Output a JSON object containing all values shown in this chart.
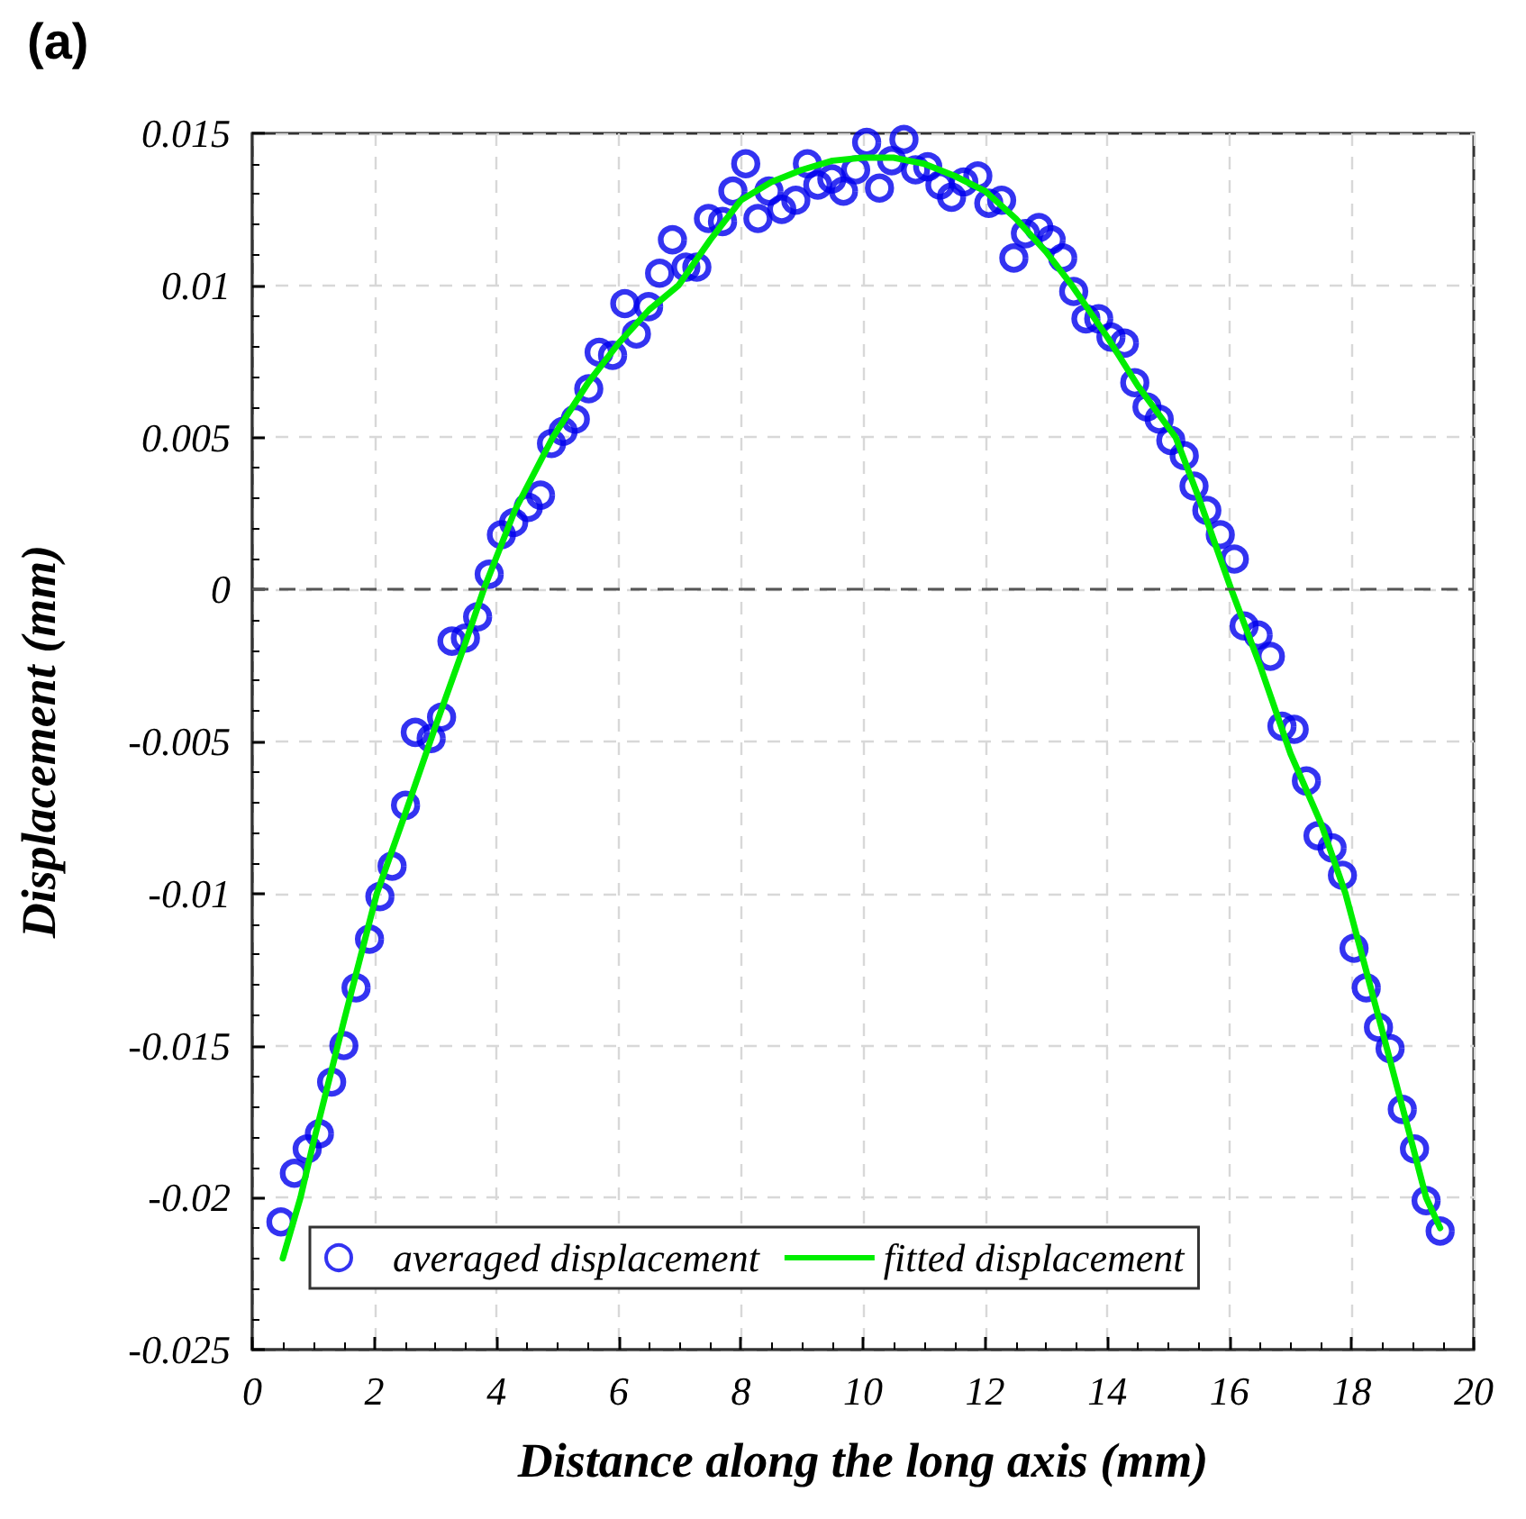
{
  "chart_data": {
    "type": "scatter",
    "title": "(a)",
    "xlabel": "Distance along the long axis (mm)",
    "ylabel": "Displacement (mm)",
    "xlim": [
      0,
      20
    ],
    "xticks": [
      0,
      2,
      4,
      6,
      8,
      10,
      12,
      14,
      16,
      18,
      20
    ],
    "ylim": [
      -0.025,
      0.015
    ],
    "yticks": [
      -0.025,
      -0.02,
      -0.015,
      -0.01,
      -0.005,
      0,
      0.005,
      0.01,
      0.015
    ],
    "grid": true,
    "legend": "bottom",
    "marker": "circle",
    "ref_lines": [
      {
        "axis": "y",
        "value": 0,
        "color": "#555555",
        "line_style": "dashed"
      }
    ],
    "series": [
      {
        "name": "averaged displacement",
        "color": "#0000ee",
        "x": [
          0.47,
          0.69,
          0.9,
          1.1,
          1.3,
          1.5,
          1.7,
          1.92,
          2.09,
          2.29,
          2.51,
          2.67,
          2.93,
          3.1,
          3.27,
          3.49,
          3.69,
          3.88,
          4.08,
          4.28,
          4.52,
          4.72,
          4.9,
          5.09,
          5.29,
          5.51,
          5.68,
          5.9,
          6.1,
          6.29,
          6.49,
          6.67,
          6.88,
          7.1,
          7.28,
          7.47,
          7.7,
          7.87,
          8.08,
          8.28,
          8.46,
          8.67,
          8.9,
          9.09,
          9.26,
          9.49,
          9.68,
          9.88,
          10.06,
          10.27,
          10.47,
          10.67,
          10.86,
          11.06,
          11.26,
          11.45,
          11.65,
          11.88,
          12.06,
          12.27,
          12.47,
          12.66,
          12.88,
          13.08,
          13.27,
          13.45,
          13.65,
          13.86,
          14.06,
          14.28,
          14.45,
          14.65,
          14.85,
          15.04,
          15.26,
          15.42,
          15.63,
          15.85,
          16.08,
          16.24,
          16.47,
          16.67,
          16.86,
          17.06,
          17.26,
          17.45,
          17.68,
          17.85,
          18.04,
          18.24,
          18.44,
          18.63,
          18.83,
          19.03,
          19.22,
          19.45
        ],
        "values": [
          -0.0208,
          -0.0192,
          -0.0184,
          -0.0179,
          -0.0162,
          -0.015,
          -0.0131,
          -0.0115,
          -0.0101,
          -0.0091,
          -0.0071,
          -0.0047,
          -0.0049,
          -0.0042,
          -0.0017,
          -0.0016,
          -0.0009,
          0.0005,
          0.0018,
          0.0022,
          0.0027,
          0.0031,
          0.0048,
          0.0052,
          0.0056,
          0.0066,
          0.0078,
          0.0077,
          0.0094,
          0.0084,
          0.0093,
          0.0104,
          0.0115,
          0.0106,
          0.0106,
          0.0122,
          0.0121,
          0.0131,
          0.014,
          0.0122,
          0.0131,
          0.0125,
          0.0128,
          0.014,
          0.0133,
          0.0135,
          0.0131,
          0.0138,
          0.0147,
          0.0132,
          0.0141,
          0.0148,
          0.0138,
          0.0139,
          0.0133,
          0.0129,
          0.0134,
          0.0136,
          0.0127,
          0.0128,
          0.0109,
          0.0117,
          0.0119,
          0.0115,
          0.0109,
          0.0098,
          0.0089,
          0.0089,
          0.0083,
          0.0081,
          0.0068,
          0.006,
          0.0056,
          0.0049,
          0.0044,
          0.0034,
          0.0026,
          0.0018,
          0.001,
          -0.0012,
          -0.0015,
          -0.0022,
          -0.0045,
          -0.0046,
          -0.0063,
          -0.0081,
          -0.0085,
          -0.0094,
          -0.0118,
          -0.0131,
          -0.0144,
          -0.0151,
          -0.0171,
          -0.0184,
          -0.0201,
          -0.0211
        ]
      },
      {
        "name": "fitted displacement",
        "type": "line",
        "color": "#00ee00",
        "marker": "none",
        "line_style": "solid",
        "x": [
          0.5,
          0.79,
          1.0,
          1.5,
          2.04,
          2.5,
          3.0,
          3.5,
          3.79,
          4.3,
          4.92,
          5.5,
          6.0,
          6.5,
          6.98,
          7.5,
          8.0,
          8.5,
          9.0,
          9.5,
          10.0,
          10.5,
          11.0,
          11.5,
          12.0,
          12.5,
          13.0,
          13.42,
          14.0,
          14.5,
          15.12,
          15.5,
          16.03,
          16.5,
          17.0,
          17.5,
          17.9,
          18.5,
          19.0,
          19.22,
          19.45
        ],
        "values": [
          -0.022,
          -0.02,
          -0.0182,
          -0.0142,
          -0.01,
          -0.0074,
          -0.0045,
          -0.0017,
          0,
          0.0026,
          0.005,
          0.0068,
          0.0081,
          0.0092,
          0.01,
          0.0115,
          0.0128,
          0.0134,
          0.0138,
          0.0141,
          0.0142,
          0.0142,
          0.014,
          0.0136,
          0.0131,
          0.0122,
          0.0111,
          0.01,
          0.0083,
          0.0067,
          0.005,
          0.003,
          0,
          -0.0025,
          -0.0054,
          -0.0077,
          -0.01,
          -0.0145,
          -0.0183,
          -0.02,
          -0.021
        ]
      }
    ]
  }
}
